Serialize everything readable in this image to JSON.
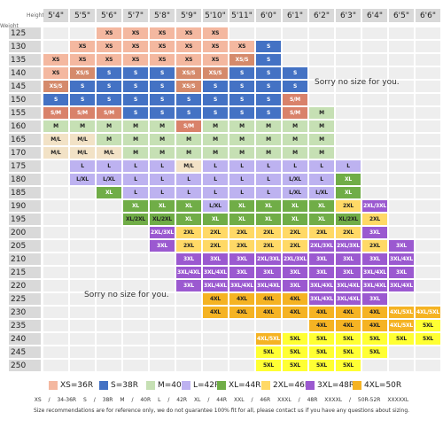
{
  "labels": {
    "height": "Height",
    "weight": "Weight"
  },
  "heights": [
    "5'4\"",
    "5'5\"",
    "5'6\"",
    "5'7\"",
    "5'8\"",
    "5'9\"",
    "5'10\"",
    "5'11\"",
    "6'0\"",
    "6'1\"",
    "6'2\"",
    "6'3\"",
    "6'4\"",
    "6'5\"",
    "6'6\""
  ],
  "weights": [
    "125",
    "130",
    "135",
    "140",
    "145",
    "150",
    "155",
    "160",
    "165",
    "170",
    "175",
    "180",
    "185",
    "190",
    "195",
    "200",
    "205",
    "210",
    "215",
    "220",
    "225",
    "230",
    "235",
    "240",
    "245",
    "250"
  ],
  "colors": {
    "XS": "#f4b8a0",
    "S": "#4472c4",
    "M": "#c6e0b4",
    "L": "#bdb2f0",
    "XL": "#70ad47",
    "2XL": "#ffd966",
    "3XL": "#9b59d0",
    "4XL": "#f5b323",
    "5XL": "#ffff33",
    "SM": "#d9826a",
    "ML": "#f2e2c6",
    "XS/S": "#d58a6b",
    "EMPTY": "#eeeeee"
  },
  "grid": [
    [
      "EMPTY",
      "EMPTY",
      "XS",
      "XS",
      "XS",
      "XS",
      "XS",
      "EMPTY",
      "EMPTY",
      "EMPTY",
      "EMPTY",
      "EMPTY",
      "EMPTY",
      "EMPTY",
      "EMPTY"
    ],
    [
      "EMPTY",
      "XS",
      "XS",
      "XS",
      "XS",
      "XS",
      "XS",
      "XS",
      "S",
      "EMPTY",
      "EMPTY",
      "EMPTY",
      "EMPTY",
      "EMPTY",
      "EMPTY"
    ],
    [
      "XS",
      "XS",
      "XS",
      "XS",
      "XS",
      "XS",
      "XS",
      "XS/S",
      "S",
      "EMPTY",
      "EMPTY",
      "EMPTY",
      "EMPTY",
      "EMPTY",
      "EMPTY"
    ],
    [
      "XS",
      "XS/S",
      "S",
      "S",
      "S",
      "XS/S",
      "XS/S",
      "S",
      "S",
      "S",
      "EMPTY",
      "EMPTY",
      "EMPTY",
      "EMPTY",
      "EMPTY"
    ],
    [
      "XS/S",
      "S",
      "S",
      "S",
      "S",
      "XS/S",
      "S",
      "S",
      "S",
      "S",
      "EMPTY",
      "EMPTY",
      "EMPTY",
      "EMPTY",
      "EMPTY"
    ],
    [
      "S",
      "S",
      "S",
      "S",
      "S",
      "S",
      "S",
      "S",
      "S",
      "SM",
      "EMPTY",
      "EMPTY",
      "EMPTY",
      "EMPTY",
      "EMPTY"
    ],
    [
      "SM",
      "SM",
      "SM",
      "S",
      "S",
      "S",
      "S",
      "S",
      "S",
      "SM",
      "M",
      "EMPTY",
      "EMPTY",
      "EMPTY",
      "EMPTY"
    ],
    [
      "M",
      "M",
      "M",
      "M",
      "M",
      "SM",
      "M",
      "M",
      "M",
      "M",
      "M",
      "EMPTY",
      "EMPTY",
      "EMPTY",
      "EMPTY"
    ],
    [
      "ML",
      "ML",
      "M",
      "M",
      "M",
      "M",
      "M",
      "M",
      "M",
      "M",
      "M",
      "EMPTY",
      "EMPTY",
      "EMPTY",
      "EMPTY"
    ],
    [
      "ML",
      "ML",
      "ML",
      "M",
      "M",
      "M",
      "M",
      "M",
      "M",
      "M",
      "M",
      "EMPTY",
      "EMPTY",
      "EMPTY",
      "EMPTY"
    ],
    [
      "EMPTY",
      "L",
      "L",
      "L",
      "L",
      "ML",
      "L",
      "L",
      "L",
      "L",
      "L",
      "L",
      "EMPTY",
      "EMPTY",
      "EMPTY"
    ],
    [
      "EMPTY",
      "LXL",
      "LXL",
      "L",
      "L",
      "L",
      "L",
      "L",
      "L",
      "LXL",
      "L",
      "XL",
      "EMPTY",
      "EMPTY",
      "EMPTY"
    ],
    [
      "EMPTY",
      "EMPTY",
      "XL",
      "L",
      "L",
      "L",
      "L",
      "L",
      "L",
      "LXL",
      "LXL",
      "XL",
      "EMPTY",
      "EMPTY",
      "EMPTY"
    ],
    [
      "EMPTY",
      "EMPTY",
      "EMPTY",
      "XL",
      "XL",
      "XL",
      "LXL",
      "XL",
      "XL",
      "XL",
      "XL",
      "2XL",
      "2XL3XL",
      "EMPTY",
      "EMPTY"
    ],
    [
      "EMPTY",
      "EMPTY",
      "EMPTY",
      "XL2XL",
      "XL2XL",
      "XL",
      "XL",
      "XL",
      "XL",
      "XL",
      "XL",
      "XL2XL",
      "2XL",
      "EMPTY",
      "EMPTY"
    ],
    [
      "EMPTY",
      "EMPTY",
      "EMPTY",
      "EMPTY",
      "2XL3XL",
      "2XL",
      "2XL",
      "2XL",
      "2XL",
      "2XL",
      "2XL",
      "2XL",
      "3XL",
      "EMPTY",
      "EMPTY"
    ],
    [
      "EMPTY",
      "EMPTY",
      "EMPTY",
      "EMPTY",
      "3XL",
      "2XL",
      "2XL",
      "2XL",
      "2XL",
      "2XL",
      "2XL3XL",
      "2XL3XL",
      "2XL",
      "3XL",
      "EMPTY"
    ],
    [
      "EMPTY",
      "EMPTY",
      "EMPTY",
      "EMPTY",
      "EMPTY",
      "3XL",
      "3XL",
      "3XL",
      "2XL3XL",
      "2XL3XL",
      "3XL",
      "3XL",
      "3XL",
      "3XL4XL",
      "EMPTY"
    ],
    [
      "EMPTY",
      "EMPTY",
      "EMPTY",
      "EMPTY",
      "EMPTY",
      "3XL4XL",
      "3XL4XL",
      "3XL",
      "3XL",
      "3XL",
      "3XL",
      "3XL",
      "3XL4XL",
      "3XL",
      "EMPTY"
    ],
    [
      "EMPTY",
      "EMPTY",
      "EMPTY",
      "EMPTY",
      "EMPTY",
      "3XL",
      "3XL4XL",
      "3XL4XL",
      "3XL4XL",
      "3XL",
      "3XL4XL",
      "3XL4XL",
      "3XL4XL",
      "3XL4XL",
      "EMPTY"
    ],
    [
      "EMPTY",
      "EMPTY",
      "EMPTY",
      "EMPTY",
      "EMPTY",
      "EMPTY",
      "4XL",
      "4XL",
      "4XL",
      "4XL",
      "3XL4XL",
      "3XL4XL",
      "3XL",
      "EMPTY",
      "EMPTY"
    ],
    [
      "EMPTY",
      "EMPTY",
      "EMPTY",
      "EMPTY",
      "EMPTY",
      "EMPTY",
      "4XL",
      "4XL",
      "4XL",
      "4XL",
      "4XL",
      "4XL",
      "4XL",
      "4XL5XL",
      "4XL5XL"
    ],
    [
      "EMPTY",
      "EMPTY",
      "EMPTY",
      "EMPTY",
      "EMPTY",
      "EMPTY",
      "EMPTY",
      "EMPTY",
      "EMPTY",
      "EMPTY",
      "4XL",
      "4XL",
      "4XL",
      "4XL5XL",
      "5XL"
    ],
    [
      "EMPTY",
      "EMPTY",
      "EMPTY",
      "EMPTY",
      "EMPTY",
      "EMPTY",
      "EMPTY",
      "EMPTY",
      "4XL5XL",
      "5XL",
      "5XL",
      "5XL",
      "5XL",
      "5XL",
      "5XL"
    ],
    [
      "EMPTY",
      "EMPTY",
      "EMPTY",
      "EMPTY",
      "EMPTY",
      "EMPTY",
      "EMPTY",
      "EMPTY",
      "5XL",
      "5XL",
      "5XL",
      "5XL",
      "5XL",
      "EMPTY",
      "EMPTY"
    ],
    [
      "EMPTY",
      "EMPTY",
      "EMPTY",
      "EMPTY",
      "EMPTY",
      "EMPTY",
      "EMPTY",
      "EMPTY",
      "5XL",
      "5XL",
      "5XL",
      "5XL",
      "EMPTY",
      "EMPTY",
      "EMPTY"
    ]
  ],
  "size_display": {
    "XS": "XS",
    "S": "S",
    "M": "M",
    "L": "L",
    "XL": "XL",
    "2XL": "2XL",
    "3XL": "3XL",
    "4XL": "4XL",
    "5XL": "5XL",
    "SM": "S/M",
    "ML": "M/L",
    "XS/S": "XS/S",
    "LXL": "L/XL",
    "XL2XL": "XL/2XL",
    "2XL3XL": "2XL/3XL",
    "3XL4XL": "3XL/4XL",
    "4XL5XL": "4XL/5XL",
    "EMPTY": ""
  },
  "size_colors": {
    "XS": "XS",
    "S": "S",
    "M": "M",
    "L": "L",
    "XL": "XL",
    "2XL": "2XL",
    "3XL": "3XL",
    "4XL": "4XL",
    "5XL": "5XL",
    "SM": "SM",
    "ML": "ML",
    "XS/S": "XS/S",
    "LXL": "L",
    "XL2XL": "XL",
    "2XL3XL": "3XL",
    "3XL4XL": "3XL",
    "4XL5XL": "4XL",
    "EMPTY": "EMPTY"
  },
  "notes": {
    "top_right": "Sorry no size for you.",
    "bottom_left": "Sorry no size for you."
  },
  "legend": [
    {
      "label": "XS=36R",
      "color": "#f4b8a0"
    },
    {
      "label": "S=38R",
      "color": "#4472c4"
    },
    {
      "label": "M=40R",
      "color": "#c6e0b4"
    },
    {
      "label": "L=42R",
      "color": "#bdb2f0"
    },
    {
      "label": "XL=44R",
      "color": "#70ad47"
    },
    {
      "label": "2XL=46R",
      "color": "#ffd966"
    },
    {
      "label": "3XL=48R",
      "color": "#9b59d0"
    },
    {
      "label": "4XL=50R",
      "color": "#f5b323"
    }
  ],
  "conversion_line": "XS / 34-36R   S / 38R   M / 40R   L / 42R   XL / 44R   XXL / 46R   XXXL / 48R   XXXXL / 50R-52R   XXXXXL",
  "disclaimer": "Size recommendations are for reference only, we do not guarantee 100% fit for all, please contact us if you have any questions about sizing."
}
